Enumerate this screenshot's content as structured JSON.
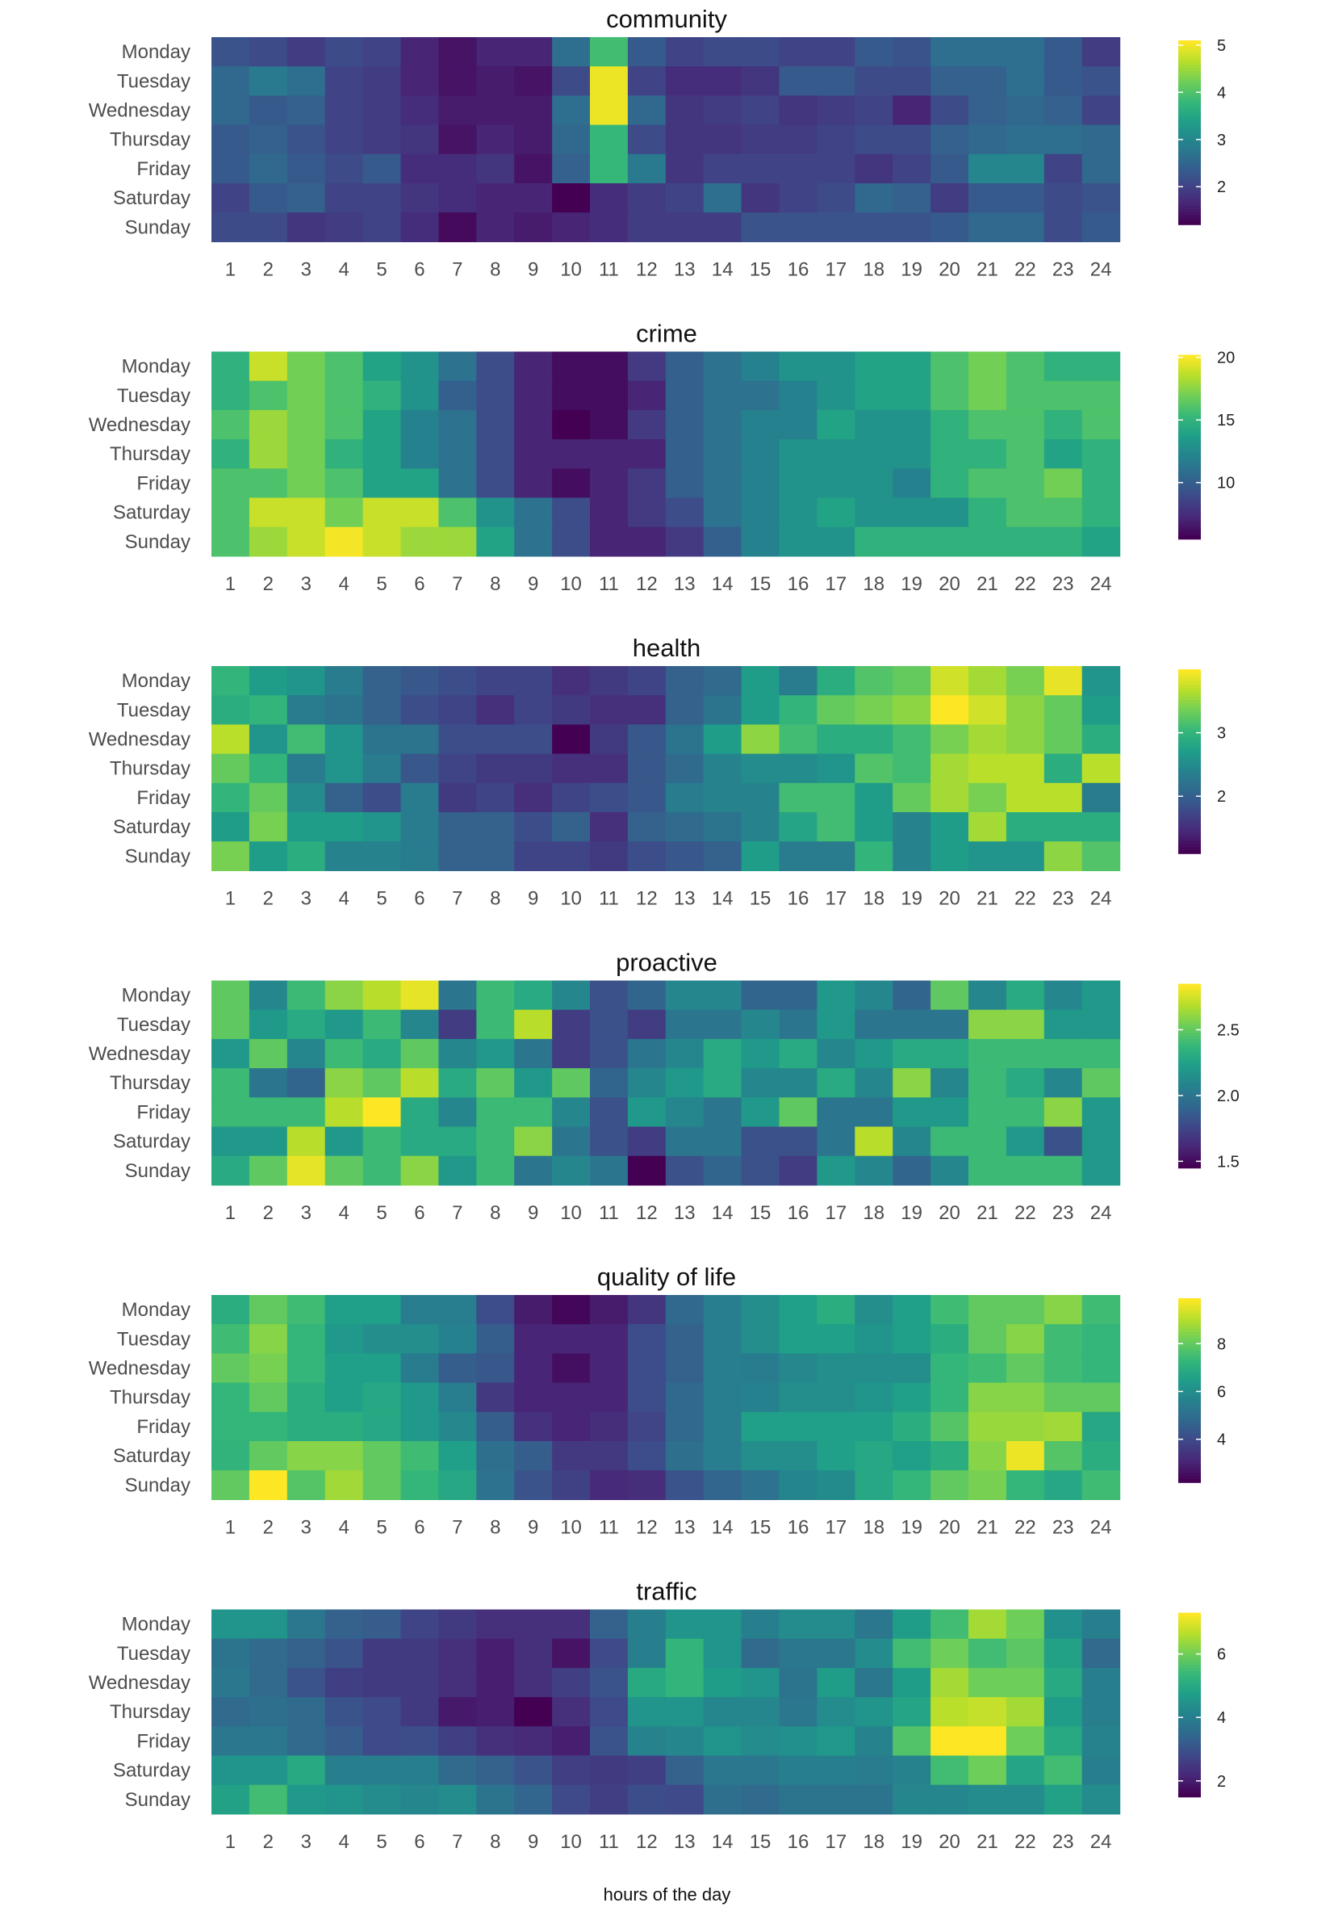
{
  "figure": {
    "xlabel": "hours of the day"
  },
  "colors": {
    "viridis": [
      "#440154",
      "#482878",
      "#3e4989",
      "#31688e",
      "#26828e",
      "#1f9e89",
      "#35b779",
      "#6ece58",
      "#b5de2b",
      "#fde725"
    ]
  },
  "days": [
    "Monday",
    "Tuesday",
    "Wednesday",
    "Thursday",
    "Friday",
    "Saturday",
    "Sunday"
  ],
  "hours": [
    "1",
    "2",
    "3",
    "4",
    "5",
    "6",
    "7",
    "8",
    "9",
    "10",
    "11",
    "12",
    "13",
    "14",
    "15",
    "16",
    "17",
    "18",
    "19",
    "20",
    "21",
    "22",
    "23",
    "24"
  ],
  "chart_data": [
    {
      "type": "heatmap",
      "title": "community",
      "ylabel": "",
      "xlabel": "hours of the day",
      "legend_position": "right",
      "range": [
        1.2,
        5.1
      ],
      "legend_ticks": [
        "2",
        "3",
        "4",
        "5"
      ],
      "legend_tick_values": [
        2,
        3,
        4,
        5
      ],
      "values": [
        [
          2.2,
          2.1,
          1.9,
          2.1,
          2.0,
          1.6,
          1.4,
          1.6,
          1.6,
          2.6,
          3.9,
          2.3,
          2.0,
          2.1,
          2.1,
          2.0,
          2.0,
          2.3,
          2.2,
          2.6,
          2.6,
          2.6,
          2.3,
          1.9
        ],
        [
          2.5,
          2.8,
          2.6,
          2.0,
          1.9,
          1.6,
          1.4,
          1.5,
          1.4,
          2.1,
          5.0,
          2.0,
          1.7,
          1.7,
          1.8,
          2.3,
          2.3,
          2.1,
          2.1,
          2.4,
          2.4,
          2.6,
          2.3,
          2.2
        ],
        [
          2.5,
          2.3,
          2.4,
          2.0,
          1.9,
          1.7,
          1.5,
          1.5,
          1.5,
          2.6,
          5.0,
          2.5,
          1.8,
          1.9,
          2.0,
          1.8,
          1.9,
          2.0,
          1.6,
          2.1,
          2.4,
          2.5,
          2.4,
          2.0
        ],
        [
          2.3,
          2.4,
          2.2,
          2.0,
          1.9,
          1.8,
          1.4,
          1.6,
          1.5,
          2.5,
          3.8,
          2.1,
          1.8,
          1.8,
          1.9,
          1.9,
          2.0,
          2.1,
          2.1,
          2.4,
          2.5,
          2.6,
          2.6,
          2.5
        ],
        [
          2.3,
          2.5,
          2.3,
          2.1,
          2.3,
          1.7,
          1.7,
          1.8,
          1.4,
          2.4,
          3.8,
          2.8,
          1.8,
          2.0,
          2.0,
          2.0,
          2.0,
          1.8,
          2.0,
          2.3,
          3.0,
          3.0,
          2.0,
          2.5
        ],
        [
          2.0,
          2.3,
          2.4,
          2.0,
          2.0,
          1.8,
          1.7,
          1.6,
          1.6,
          1.2,
          1.7,
          1.9,
          2.0,
          2.6,
          1.8,
          2.0,
          2.1,
          2.5,
          2.4,
          1.9,
          2.3,
          2.3,
          2.1,
          2.2
        ],
        [
          2.1,
          2.1,
          1.8,
          1.9,
          2.0,
          1.7,
          1.3,
          1.6,
          1.5,
          1.6,
          1.7,
          1.9,
          1.9,
          1.9,
          2.2,
          2.2,
          2.2,
          2.2,
          2.2,
          2.3,
          2.5,
          2.5,
          2.1,
          2.3
        ]
      ]
    },
    {
      "type": "heatmap",
      "title": "crime",
      "ylabel": "",
      "xlabel": "hours of the day",
      "legend_position": "right",
      "range": [
        5.5,
        20.2
      ],
      "legend_ticks": [
        "10",
        "15",
        "20"
      ],
      "legend_tick_values": [
        10,
        15,
        20
      ],
      "values": [
        [
          15,
          19,
          17,
          16,
          14,
          13,
          11,
          9,
          7,
          6,
          6,
          8,
          10,
          11,
          12,
          13,
          13,
          14,
          14,
          16,
          17,
          16,
          15,
          15
        ],
        [
          15,
          16,
          17,
          16,
          15,
          13,
          10,
          9,
          7,
          6,
          6,
          7,
          10,
          11,
          11,
          12,
          13,
          14,
          14,
          16,
          17,
          16,
          16,
          16
        ],
        [
          16,
          18,
          17,
          16,
          14,
          12,
          11,
          9,
          7,
          5.5,
          6,
          8,
          10,
          11,
          12,
          12,
          14,
          13,
          13,
          15,
          16,
          16,
          15,
          16
        ],
        [
          15,
          18,
          17,
          15,
          14,
          12,
          11,
          9,
          7,
          7,
          7,
          7,
          10,
          11,
          12,
          13,
          13,
          13,
          13,
          15,
          15,
          16,
          14,
          15
        ],
        [
          16,
          16,
          17,
          16,
          14,
          14,
          11,
          9,
          7,
          6,
          7,
          8,
          10,
          11,
          12,
          13,
          13,
          13,
          12,
          15,
          16,
          16,
          17,
          15
        ],
        [
          16,
          19,
          19,
          17,
          19,
          19,
          16,
          13,
          11,
          9,
          7,
          8,
          9,
          11,
          12,
          13,
          14,
          13,
          13,
          13,
          15,
          16,
          16,
          15
        ],
        [
          16,
          18,
          19,
          20,
          19,
          18,
          18,
          14,
          11,
          9,
          7,
          7,
          8,
          10,
          12,
          13,
          13,
          15,
          15,
          15,
          15,
          15,
          15,
          14
        ]
      ]
    },
    {
      "type": "heatmap",
      "title": "health",
      "ylabel": "",
      "xlabel": "hours of the day",
      "legend_position": "right",
      "range": [
        1.1,
        4.0
      ],
      "legend_ticks": [
        "2",
        "3"
      ],
      "legend_tick_values": [
        2,
        3
      ],
      "values": [
        [
          3.0,
          2.7,
          2.6,
          2.3,
          2.0,
          1.9,
          1.8,
          1.7,
          1.7,
          1.5,
          1.6,
          1.7,
          2.0,
          2.1,
          2.7,
          2.3,
          2.9,
          3.2,
          3.3,
          3.8,
          3.6,
          3.4,
          3.9,
          2.6
        ],
        [
          2.9,
          3.0,
          2.3,
          2.2,
          2.0,
          1.8,
          1.7,
          1.5,
          1.7,
          1.6,
          1.5,
          1.5,
          2.0,
          2.2,
          2.7,
          3.0,
          3.3,
          3.4,
          3.5,
          4.0,
          3.8,
          3.5,
          3.3,
          2.7
        ],
        [
          3.7,
          2.6,
          3.1,
          2.6,
          2.2,
          2.2,
          1.8,
          1.8,
          1.8,
          1.1,
          1.6,
          1.9,
          2.2,
          2.7,
          3.5,
          3.1,
          2.9,
          2.9,
          3.1,
          3.4,
          3.6,
          3.5,
          3.3,
          2.9
        ],
        [
          3.3,
          3.0,
          2.3,
          2.6,
          2.3,
          1.9,
          1.7,
          1.6,
          1.6,
          1.5,
          1.5,
          1.9,
          2.1,
          2.4,
          2.5,
          2.5,
          2.6,
          3.2,
          3.1,
          3.6,
          3.7,
          3.7,
          2.9,
          3.7
        ],
        [
          3.0,
          3.3,
          2.5,
          2.0,
          1.8,
          2.3,
          1.6,
          1.7,
          1.5,
          1.7,
          1.8,
          1.9,
          2.3,
          2.4,
          2.4,
          3.1,
          3.1,
          2.7,
          3.3,
          3.6,
          3.4,
          3.7,
          3.7,
          2.3
        ],
        [
          2.7,
          3.4,
          2.7,
          2.7,
          2.6,
          2.3,
          2.0,
          2.0,
          1.8,
          2.0,
          1.5,
          2.0,
          2.1,
          2.2,
          2.4,
          2.8,
          3.1,
          2.7,
          2.4,
          2.7,
          3.6,
          2.9,
          2.9,
          2.9
        ],
        [
          3.4,
          2.7,
          2.9,
          2.4,
          2.4,
          2.3,
          2.0,
          2.0,
          1.7,
          1.7,
          1.6,
          1.8,
          1.9,
          2.0,
          2.7,
          2.3,
          2.3,
          3.0,
          2.4,
          2.7,
          2.6,
          2.6,
          3.5,
          3.2
        ]
      ]
    },
    {
      "type": "heatmap",
      "title": "proactive",
      "ylabel": "",
      "xlabel": "hours of the day",
      "legend_position": "right",
      "range": [
        1.45,
        2.85
      ],
      "legend_ticks": [
        "1.5",
        "2.0",
        "2.5"
      ],
      "legend_tick_values": [
        1.5,
        2.0,
        2.5
      ],
      "values": [
        [
          2.5,
          2.1,
          2.4,
          2.6,
          2.7,
          2.8,
          2.0,
          2.4,
          2.3,
          2.1,
          1.8,
          1.9,
          2.1,
          2.1,
          1.9,
          1.9,
          2.2,
          2.1,
          1.9,
          2.5,
          2.1,
          2.3,
          2.1,
          2.2
        ],
        [
          2.5,
          2.2,
          2.3,
          2.2,
          2.4,
          2.1,
          1.7,
          2.4,
          2.7,
          1.7,
          1.8,
          1.7,
          2.0,
          2.0,
          2.1,
          2.0,
          2.2,
          2.0,
          2.0,
          2.0,
          2.6,
          2.6,
          2.2,
          2.2
        ],
        [
          2.2,
          2.5,
          2.1,
          2.4,
          2.3,
          2.5,
          2.1,
          2.2,
          2.0,
          1.7,
          1.8,
          2.0,
          2.1,
          2.3,
          2.2,
          2.3,
          2.1,
          2.2,
          2.3,
          2.3,
          2.4,
          2.4,
          2.4,
          2.4
        ],
        [
          2.4,
          2.0,
          1.9,
          2.6,
          2.5,
          2.7,
          2.3,
          2.5,
          2.2,
          2.5,
          1.9,
          2.1,
          2.2,
          2.3,
          2.1,
          2.1,
          2.3,
          2.1,
          2.6,
          2.1,
          2.4,
          2.3,
          2.1,
          2.5
        ],
        [
          2.4,
          2.4,
          2.4,
          2.7,
          2.85,
          2.3,
          2.1,
          2.4,
          2.4,
          2.1,
          1.8,
          2.2,
          2.1,
          2.0,
          2.2,
          2.5,
          2.0,
          2.0,
          2.2,
          2.2,
          2.4,
          2.4,
          2.6,
          2.2
        ],
        [
          2.2,
          2.2,
          2.7,
          2.2,
          2.4,
          2.3,
          2.3,
          2.4,
          2.6,
          2.0,
          1.8,
          1.7,
          2.0,
          2.0,
          1.8,
          1.8,
          2.0,
          2.7,
          2.1,
          2.4,
          2.4,
          2.2,
          1.8,
          2.2
        ],
        [
          2.3,
          2.5,
          2.8,
          2.5,
          2.4,
          2.6,
          2.2,
          2.4,
          2.0,
          2.1,
          2.0,
          1.45,
          1.8,
          1.9,
          1.8,
          1.7,
          2.2,
          2.1,
          1.9,
          2.1,
          2.4,
          2.4,
          2.4,
          2.2
        ]
      ]
    },
    {
      "type": "heatmap",
      "title": "quality of life",
      "ylabel": "",
      "xlabel": "hours of the day",
      "legend_position": "right",
      "range": [
        2.2,
        9.9
      ],
      "legend_ticks": [
        "4",
        "6",
        "8"
      ],
      "legend_tick_values": [
        4,
        6,
        8
      ],
      "values": [
        [
          7,
          8,
          7.5,
          6.5,
          6.5,
          5.5,
          5.5,
          4,
          2.8,
          2.3,
          2.8,
          3.4,
          4.8,
          5.5,
          6,
          6.5,
          7,
          6,
          6.5,
          7.5,
          8,
          8,
          8.5,
          7.5
        ],
        [
          7.5,
          8.5,
          7.3,
          6.3,
          6,
          6,
          5.6,
          4.5,
          3,
          3,
          3,
          4,
          4.6,
          5.5,
          6,
          6.5,
          6.5,
          6.2,
          6.5,
          7,
          8,
          8.5,
          7.5,
          7.3
        ],
        [
          8,
          8.3,
          7.3,
          6.5,
          6.5,
          5.4,
          4.5,
          4.3,
          3,
          2.5,
          3,
          4,
          4.6,
          5.5,
          5.4,
          5.8,
          6,
          6,
          6,
          7.3,
          7.5,
          8,
          7.5,
          7.3
        ],
        [
          7.3,
          8,
          7,
          6.5,
          6.8,
          6.3,
          5.5,
          3.5,
          3,
          3,
          3,
          4,
          4.8,
          5.5,
          5.6,
          6,
          6,
          6.2,
          6.5,
          7.3,
          8.5,
          8.5,
          8,
          8
        ],
        [
          7.3,
          7.3,
          7,
          7,
          6.8,
          6.3,
          5.8,
          4.5,
          3.3,
          3,
          3.2,
          3.8,
          4.8,
          5.5,
          6.5,
          6.5,
          6.5,
          6.5,
          7,
          7.8,
          8.7,
          8.7,
          8.8,
          6.8
        ],
        [
          7.2,
          8,
          8.5,
          8.5,
          8,
          7.5,
          6.5,
          5,
          4.5,
          3.5,
          3.5,
          4,
          5,
          5.5,
          6,
          6,
          6.5,
          6.8,
          6.5,
          7,
          8.5,
          9.7,
          7.8,
          7
        ],
        [
          8,
          9.9,
          7.8,
          8.8,
          8,
          7.3,
          6.8,
          5.1,
          4.2,
          3.7,
          3.1,
          3.2,
          4.2,
          4.7,
          5.1,
          5.7,
          5.9,
          6.8,
          7.3,
          8,
          8.3,
          7.3,
          6.8,
          7.5
        ]
      ]
    },
    {
      "type": "heatmap",
      "title": "traffic",
      "ylabel": "",
      "xlabel": "hours of the day",
      "legend_position": "right",
      "range": [
        1.5,
        7.3
      ],
      "legend_ticks": [
        "2",
        "4",
        "6"
      ],
      "legend_tick_values": [
        2,
        4,
        6
      ],
      "values": [
        [
          4.5,
          4.5,
          3.8,
          3.3,
          3.2,
          2.7,
          2.5,
          2.3,
          2.3,
          2.3,
          3.3,
          4.0,
          4.5,
          4.5,
          4.0,
          4.3,
          4.3,
          3.8,
          4.7,
          5.5,
          6.5,
          6.0,
          4.4,
          4.0
        ],
        [
          3.7,
          3.5,
          3.3,
          3.0,
          2.5,
          2.5,
          2.3,
          2.0,
          2.3,
          1.8,
          2.8,
          4.0,
          5.3,
          4.5,
          3.5,
          3.8,
          3.8,
          4.3,
          5.5,
          6.0,
          5.5,
          5.8,
          4.8,
          3.5
        ],
        [
          3.8,
          3.5,
          3.0,
          2.6,
          2.5,
          2.5,
          2.3,
          2.0,
          2.3,
          2.6,
          3.0,
          5.0,
          5.3,
          4.7,
          4.5,
          3.7,
          4.7,
          3.8,
          4.7,
          6.5,
          6.0,
          6.0,
          5.0,
          4.0
        ],
        [
          3.5,
          3.6,
          3.5,
          3.0,
          2.8,
          2.5,
          1.9,
          2.0,
          1.5,
          2.3,
          2.8,
          4.5,
          4.5,
          4.2,
          4.2,
          3.8,
          4.3,
          4.5,
          4.9,
          6.7,
          6.8,
          6.5,
          4.7,
          4.0
        ],
        [
          3.8,
          3.8,
          3.5,
          3.2,
          2.8,
          2.9,
          2.6,
          2.3,
          2.2,
          2.0,
          3.0,
          4.1,
          4.2,
          4.5,
          4.3,
          4.4,
          4.6,
          4.1,
          5.7,
          7.3,
          7.3,
          6.0,
          5.0,
          4.1
        ],
        [
          4.5,
          4.5,
          5.0,
          4.0,
          4.0,
          4.0,
          3.5,
          3.3,
          3.0,
          2.6,
          2.5,
          2.6,
          3.3,
          3.8,
          3.8,
          4.0,
          4.0,
          3.9,
          4.1,
          5.5,
          6.0,
          4.9,
          5.5,
          4.0
        ],
        [
          4.8,
          5.5,
          4.6,
          4.5,
          4.3,
          4.2,
          4.3,
          3.7,
          3.4,
          2.8,
          2.6,
          2.9,
          2.8,
          3.6,
          3.5,
          3.7,
          3.7,
          3.7,
          4.2,
          4.2,
          4.3,
          4.3,
          4.8,
          4.3
        ]
      ]
    }
  ]
}
